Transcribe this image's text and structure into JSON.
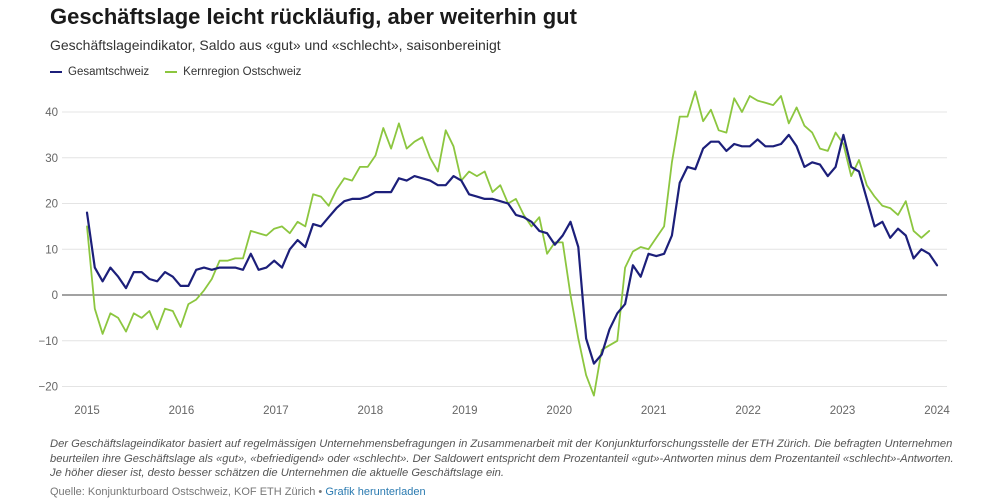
{
  "header": {
    "title": "Geschäftslage leicht rückläufig, aber weiterhin gut",
    "subtitle": "Geschäftslageindikator, Saldo aus «gut» und «schlecht», saisonbereinigt"
  },
  "footer": {
    "note": "Der Geschäftslageindikator basiert auf regelmässigen Unternehmensbefragungen in Zusammenarbeit mit der Konjunkturforschungsstelle der ETH Zürich. Die befragten Unternehmen beurteilen ihre Geschäftslage als «gut», «befriedigend» oder «schlecht». Der Saldowert entspricht dem Prozentanteil «gut»-Antworten minus dem Prozentanteil «schlecht»-Antworten. Je höher dieser ist, desto besser schätzen die Unternehmen die aktuelle Geschäftslage ein.",
    "source_label": "Quelle: Konjunkturboard Ostschweiz, KOF ETH Zürich",
    "separator": "•",
    "download_label": "Grafik herunterladen"
  },
  "colors": {
    "gesamtschweiz": "#1c1f7a",
    "kernregion": "#8cc63f",
    "grid": "#e4e4e4",
    "zero": "#444444"
  },
  "chart_data": {
    "type": "line",
    "title": "Geschäftslage leicht rückläufig, aber weiterhin gut",
    "subtitle": "Geschäftslageindikator, Saldo aus «gut» und «schlecht», saisonbereinigt",
    "xlabel": "",
    "ylabel": "",
    "ylim": [
      -22,
      44
    ],
    "yticks": [
      -20,
      -10,
      0,
      10,
      20,
      30,
      40
    ],
    "xlim": [
      2015.0,
      2024.1
    ],
    "xticks": [
      2015,
      2016,
      2017,
      2018,
      2019,
      2020,
      2021,
      2022,
      2023,
      2024
    ],
    "grid": true,
    "legend_position": "top-left",
    "series": [
      {
        "name": "Gesamtschweiz",
        "color": "#1c1f7a",
        "values": [
          18,
          6,
          3,
          6,
          4,
          1.5,
          5,
          5,
          3.5,
          3,
          5,
          4,
          2,
          2,
          5.5,
          6,
          5.5,
          6,
          6,
          6,
          5.5,
          9,
          5.5,
          6,
          7.5,
          6,
          10,
          12,
          10.5,
          15.5,
          15,
          17,
          19,
          20.5,
          21,
          21,
          21.5,
          22.5,
          22.5,
          22.5,
          25.5,
          25,
          26,
          25.5,
          25,
          24,
          24,
          26,
          25,
          22,
          21.5,
          21,
          21,
          20.5,
          20,
          17.5,
          17,
          16,
          14,
          13.5,
          11,
          13,
          16,
          10.5,
          -9.5,
          -15,
          -13,
          -7.5,
          -4,
          -2,
          6.5,
          4,
          9,
          8.5,
          9,
          13,
          24.5,
          28,
          27.5,
          32,
          33.5,
          33.5,
          31.5,
          33,
          32.5,
          32.5,
          34,
          32.5,
          32.5,
          33,
          35,
          32.5,
          28,
          29,
          28.5,
          26,
          28,
          35,
          28,
          27,
          21,
          15,
          16,
          12.5,
          14.5,
          13,
          8,
          10,
          9,
          6.5
        ]
      },
      {
        "name": "Kernregion Ostschweiz",
        "color": "#8cc63f",
        "values": [
          15,
          -3,
          -8.5,
          -4,
          -5,
          -8,
          -4,
          -5,
          -3.5,
          -7.5,
          -3,
          -3.5,
          -7,
          -2,
          -1,
          1,
          3.5,
          7.5,
          7.5,
          8,
          8,
          14,
          13.5,
          13,
          14.5,
          15,
          13.5,
          16,
          15,
          22,
          21.5,
          19.5,
          23,
          25.5,
          25,
          28,
          28,
          30.5,
          36.5,
          32,
          37.5,
          32,
          33.5,
          34.5,
          30,
          27,
          36,
          32.5,
          25,
          27,
          26,
          27,
          22.5,
          24,
          20,
          21,
          17.5,
          15,
          17,
          9,
          11.5,
          11.5,
          0,
          -9.5,
          -17.5,
          -22,
          -12,
          -11,
          -10,
          6,
          9.5,
          10.5,
          10,
          12.5,
          15,
          29,
          39,
          39,
          44.5,
          38,
          40.5,
          36,
          35.5,
          43,
          40,
          43.5,
          42.5,
          42,
          41.5,
          43.5,
          37.5,
          41,
          37,
          35.5,
          32,
          31.5,
          35.5,
          33,
          26,
          29.5,
          24,
          21.5,
          19.5,
          19,
          17.5,
          20.5,
          14,
          12.5,
          14
        ]
      }
    ]
  }
}
